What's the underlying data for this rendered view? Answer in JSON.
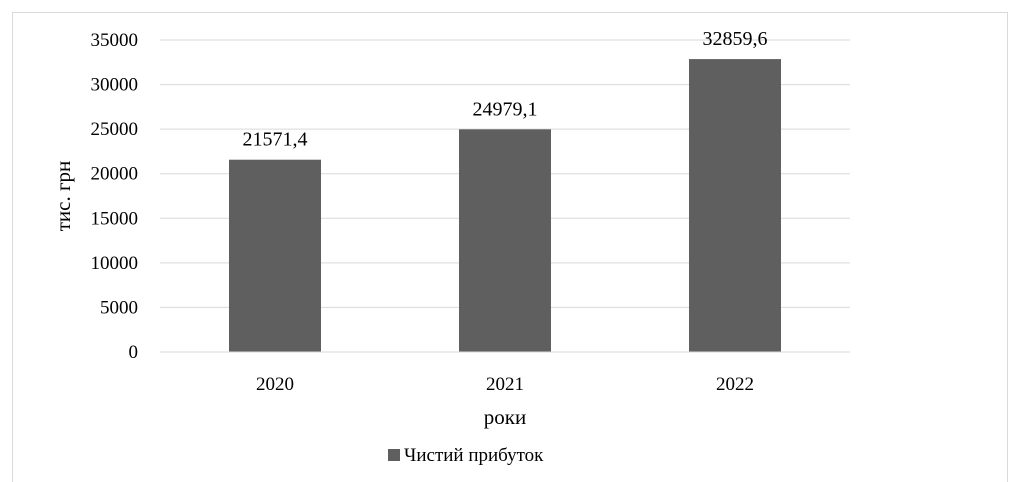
{
  "chart_data": {
    "type": "bar",
    "categories": [
      "2020",
      "2021",
      "2022"
    ],
    "series": [
      {
        "name": "Чистий прибуток",
        "values": [
          21571.4,
          24979.1,
          32859.6
        ],
        "labels": [
          "21571,4",
          "24979,1",
          "32859,6"
        ],
        "color": "#5f5f5f"
      }
    ],
    "xlabel": "роки",
    "ylabel": "тис. грн",
    "ylim": [
      0,
      35000
    ],
    "yticks": [
      0,
      5000,
      10000,
      15000,
      20000,
      25000,
      30000,
      35000
    ],
    "ytick_labels": [
      "0",
      "5000",
      "10000",
      "15000",
      "20000",
      "25000",
      "30000",
      "35000"
    ],
    "grid": true,
    "grid_color": "#d9d9d9",
    "legend_position": "bottom"
  }
}
